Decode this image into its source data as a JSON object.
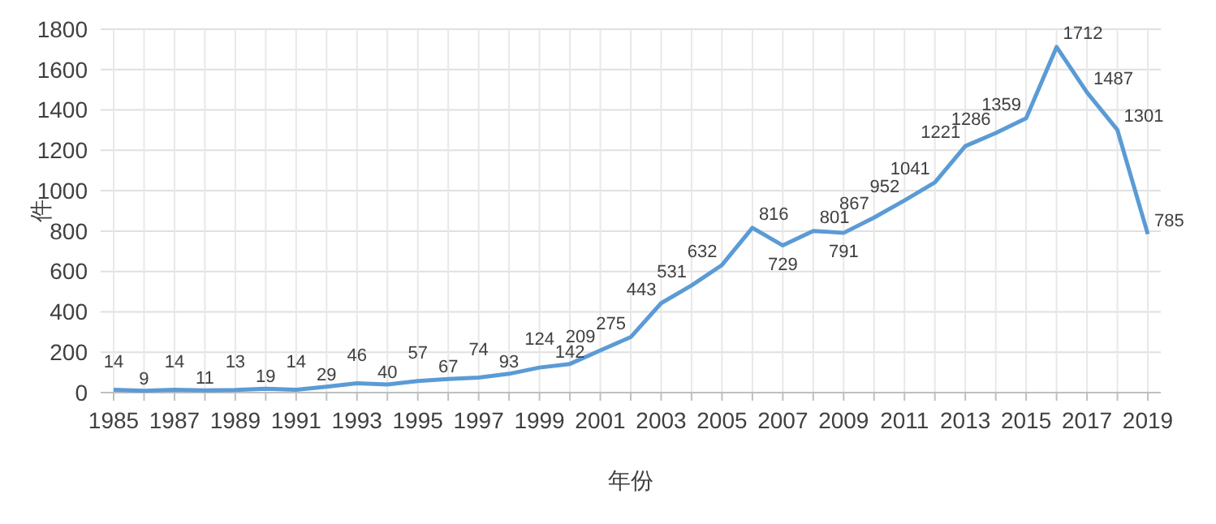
{
  "chart_data": {
    "type": "line",
    "xlabel": "年份",
    "ylabel": "件",
    "categories": [
      "1985",
      null,
      "1987",
      null,
      "1989",
      null,
      "1991",
      null,
      "1993",
      null,
      "1995",
      null,
      "1997",
      null,
      "1999",
      null,
      "2001",
      null,
      "2003",
      null,
      "2005",
      null,
      "2007",
      null,
      "2009",
      null,
      "2011",
      null,
      "2013",
      null,
      "2015",
      null,
      "2017",
      null,
      "2019"
    ],
    "series": [
      {
        "color": "#5b9bd5",
        "values": [
          14,
          9,
          14,
          11,
          13,
          19,
          14,
          29,
          46,
          40,
          57,
          67,
          74,
          93,
          124,
          142,
          209,
          275,
          443,
          531,
          632,
          816,
          729,
          801,
          791,
          867,
          952,
          1041,
          1221,
          1286,
          1359,
          1712,
          1487,
          1301,
          785
        ]
      }
    ],
    "ylim": [
      0,
      1800
    ],
    "yticks": [
      0,
      200,
      400,
      600,
      800,
      1000,
      1200,
      1400,
      1600,
      1800
    ],
    "grid": true,
    "data_labels": true,
    "marker": "none",
    "line_style": "solid"
  }
}
